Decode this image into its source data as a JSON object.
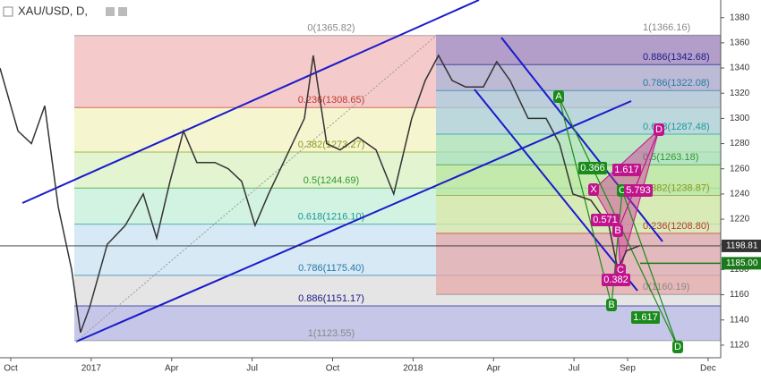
{
  "chart_data": {
    "type": "line",
    "title": "XAU/USD, D,",
    "x": [
      -0.4,
      0.27,
      0.77,
      1.27,
      1.77,
      2.27,
      2.6,
      2.94,
      3.6,
      4.27,
      4.94,
      5.44,
      5.94,
      6.44,
      6.94,
      7.61,
      8.11,
      8.61,
      9.11,
      9.61,
      10.28,
      10.95,
      11.28,
      11.78,
      12.28,
      12.95,
      13.62,
      14.28,
      14.95,
      15.45,
      15.95,
      16.46,
      16.96,
      17.62,
      18.12,
      18.62,
      19.29,
      19.96,
      20.46,
      20.96,
      21.63,
      22.3,
      22.63,
      22.96,
      23.46
    ],
    "series": [
      {
        "name": "XAU/USD",
        "color": "#333333",
        "values": [
          1340,
          1290,
          1280,
          1310,
          1230,
          1180,
          1130,
          1150,
          1200,
          1215,
          1240,
          1205,
          1250,
          1290,
          1265,
          1265,
          1260,
          1250,
          1215,
          1240,
          1270,
          1300,
          1350,
          1280,
          1275,
          1285,
          1275,
          1240,
          1300,
          1330,
          1350,
          1330,
          1325,
          1325,
          1345,
          1330,
          1300,
          1300,
          1280,
          1240,
          1235,
          1215,
          1180,
          1195,
          1199
        ]
      }
    ],
    "xlim": [
      -0.4,
      26.47
    ],
    "ylim": [
      1110,
      1394
    ],
    "xticks": [
      {
        "value": 0,
        "label": "Oct"
      },
      {
        "value": 3,
        "label": "2017"
      },
      {
        "value": 6,
        "label": "Apr"
      },
      {
        "value": 9,
        "label": "Jul"
      },
      {
        "value": 12,
        "label": "Oct"
      },
      {
        "value": 15,
        "label": "2018"
      },
      {
        "value": 18,
        "label": "Apr"
      },
      {
        "value": 21,
        "label": "Jul"
      },
      {
        "value": 23,
        "label": "Sep"
      },
      {
        "value": 26,
        "label": "Dec"
      }
    ],
    "yticks": [
      1120,
      1140,
      1160,
      1180,
      1200,
      1220,
      1240,
      1260,
      1280,
      1300,
      1320,
      1340,
      1360,
      1380
    ],
    "price_markers": [
      {
        "value": 1198.81,
        "label": "1198.81",
        "color": "#333333"
      },
      {
        "value": 1185,
        "label": "1185.00",
        "color": "#1a7a1a"
      }
    ],
    "fib_left": [
      {
        "label": "0(1365.82)",
        "price": 1365.82,
        "color": "#888888",
        "fill": "#f2b8b8"
      },
      {
        "label": "0.236(1308.65)",
        "price": 1308.65,
        "color": "#c0392b",
        "fill": "#f1f3c0"
      },
      {
        "label": "0.382(1273.27)",
        "price": 1273.27,
        "color": "#8a9a1a",
        "fill": "#d8f0c0"
      },
      {
        "label": "0.5(1244.69)",
        "price": 1244.69,
        "color": "#2e9a2e",
        "fill": "#c3eed8"
      },
      {
        "label": "0.618(1216.10)",
        "price": 1216.1,
        "color": "#1a9a9a",
        "fill": "#c8e2f2"
      },
      {
        "label": "0.786(1175.40)",
        "price": 1175.4,
        "color": "#2a7aaa",
        "fill": "#dcdcdc"
      },
      {
        "label": "0.886(1151.17)",
        "price": 1151.17,
        "color": "#1a1a8a",
        "fill": "#b3b3e0"
      },
      {
        "label": "1(1123.55)",
        "price": 1123.55,
        "color": "#888888",
        "fill": "#b3b3e0"
      }
    ],
    "fib_right": [
      {
        "label": "1(1366.16)",
        "price": 1366.16,
        "color": "#888888",
        "fill": "#9b8fc8"
      },
      {
        "label": "0.886(1342.68)",
        "price": 1342.68,
        "color": "#1a1a8a",
        "fill": "#a8b4d8"
      },
      {
        "label": "0.786(1322.08)",
        "price": 1322.08,
        "color": "#2a7aaa",
        "fill": "#a8cde0"
      },
      {
        "label": "0.618(1287.48)",
        "price": 1287.48,
        "color": "#1a9a9a",
        "fill": "#a8e0c0"
      },
      {
        "label": "0.5(1263.18)",
        "price": 1263.18,
        "color": "#2e9a2e",
        "fill": "#b8e6a0"
      },
      {
        "label": "0.382(1238.87)",
        "price": 1238.87,
        "color": "#8a9a1a",
        "fill": "#d9e8a8"
      },
      {
        "label": "0.236(1208.80)",
        "price": 1208.8,
        "color": "#c0392b",
        "fill": "#e6a8a8"
      },
      {
        "label": "0(1160.19)",
        "price": 1160.19,
        "color": "#888888",
        "fill": "none"
      }
    ],
    "pattern_labels": [
      {
        "text": "A",
        "color": "#1a8a1a"
      },
      {
        "text": "X",
        "color": "#c0148c"
      },
      {
        "text": "B",
        "color": "#c0148c"
      },
      {
        "text": "C",
        "color": "#1a8a1a"
      },
      {
        "text": "D",
        "color": "#c0148c"
      },
      {
        "text": "C",
        "color": "#c0148c"
      },
      {
        "text": "B",
        "color": "#1a8a1a"
      },
      {
        "text": "D",
        "color": "#1a8a1a"
      }
    ],
    "ratio_labels": [
      {
        "value": 0.366,
        "color": "#1a8a1a"
      },
      {
        "value": 1.617,
        "color": "#c0148c"
      },
      {
        "value": 5.793,
        "color": "#c0148c"
      },
      {
        "value": 0.571,
        "color": "#c0148c"
      },
      {
        "value": 0.382,
        "color": "#c0148c"
      },
      {
        "value": 1.617,
        "color": "#1a8a1a"
      }
    ]
  }
}
